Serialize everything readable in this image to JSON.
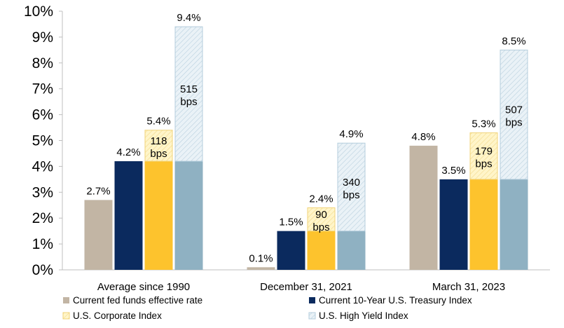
{
  "chart_data": {
    "type": "bar",
    "categories": [
      "Average since 1990",
      "December 31, 2021",
      "March 31, 2023"
    ],
    "ylim": [
      0,
      10
    ],
    "y_ticks": [
      "0%",
      "1%",
      "2%",
      "3%",
      "4%",
      "5%",
      "6%",
      "7%",
      "8%",
      "9%",
      "10%"
    ],
    "legend_placement": "bottom",
    "series": [
      {
        "name": "Current fed funds effective rate",
        "color": "#c2b5a4",
        "values": [
          2.7,
          0.1,
          4.8
        ],
        "labels": [
          "2.7%",
          "0.1%",
          "4.8%"
        ]
      },
      {
        "name": "Current 10-Year U.S. Treasury Index",
        "color": "#0b2a5e",
        "values": [
          4.2,
          1.5,
          3.5
        ],
        "labels": [
          "4.2%",
          "1.5%",
          "3.5%"
        ]
      },
      {
        "name": "U.S. Corporate Index",
        "color": "#fdc32d",
        "spread_color": "#fff5c9",
        "values": [
          5.4,
          2.4,
          5.3
        ],
        "labels": [
          "5.4%",
          "2.4%",
          "5.3%"
        ],
        "base_values": [
          4.2,
          1.5,
          3.5
        ],
        "spread_labels": [
          [
            "118",
            "bps"
          ],
          [
            "90",
            "bps"
          ],
          [
            "179",
            "bps"
          ]
        ]
      },
      {
        "name": "U.S. High Yield Index",
        "color": "#8fb1c2",
        "spread_color": "#dbe9f1",
        "values": [
          9.4,
          4.9,
          8.5
        ],
        "labels": [
          "9.4%",
          "4.9%",
          "8.5%"
        ],
        "base_values": [
          4.2,
          1.5,
          3.5
        ],
        "spread_labels": [
          [
            "515",
            "bps"
          ],
          [
            "340",
            "bps"
          ],
          [
            "507",
            "bps"
          ]
        ]
      }
    ]
  }
}
